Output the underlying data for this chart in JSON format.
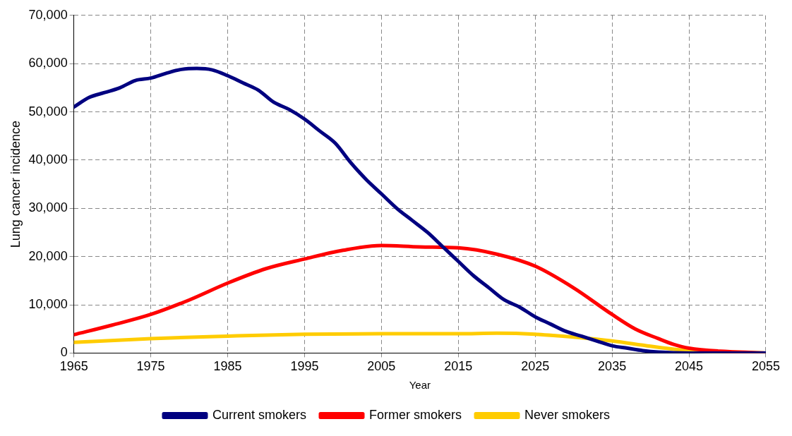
{
  "chart_data": {
    "type": "line",
    "xlabel": "Year",
    "ylabel": "Lung cancer incidence",
    "xlim": [
      1965,
      2055
    ],
    "xticks": [
      1965,
      1975,
      1985,
      1995,
      2005,
      2015,
      2025,
      2035,
      2045,
      2055
    ],
    "ylim": [
      0,
      70000
    ],
    "yticks": [
      0,
      {
        "value": 10000,
        "label": "10,000"
      },
      {
        "value": 20000,
        "label": "20,000"
      },
      {
        "value": 30000,
        "label": "30,000"
      },
      {
        "value": 40000,
        "label": "40,000"
      },
      {
        "value": 50000,
        "label": "50,000"
      },
      {
        "value": 60000,
        "label": "60,000"
      },
      {
        "value": 70000,
        "label": "70,000"
      }
    ],
    "grid": true,
    "legend": "bottom",
    "marker": "none",
    "line_style": "solid",
    "series": [
      {
        "name": "Current smokers",
        "color": "#000080",
        "x": [
          1965,
          1967,
          1969,
          1971,
          1973,
          1975,
          1977,
          1979,
          1981,
          1983,
          1985,
          1987,
          1989,
          1991,
          1993,
          1995,
          1997,
          1999,
          2001,
          2003,
          2005,
          2007,
          2009,
          2011,
          2013,
          2015,
          2017,
          2019,
          2021,
          2023,
          2025,
          2027,
          2029,
          2031,
          2033,
          2035,
          2037,
          2039,
          2041,
          2045,
          2050,
          2055
        ],
        "values": [
          51000,
          53000,
          54000,
          55000,
          56500,
          57000,
          58000,
          58800,
          59000,
          58700,
          57500,
          56000,
          54500,
          52000,
          50500,
          48500,
          46000,
          43500,
          39500,
          36000,
          33000,
          30000,
          27500,
          25000,
          22000,
          19000,
          16000,
          13500,
          11000,
          9500,
          7500,
          6000,
          4500,
          3500,
          2500,
          1500,
          1000,
          500,
          200,
          0,
          0,
          0
        ]
      },
      {
        "name": "Former smokers",
        "color": "#ff0000",
        "x": [
          1965,
          1970,
          1975,
          1980,
          1985,
          1990,
          1995,
          2000,
          2005,
          2010,
          2015,
          2020,
          2025,
          2030,
          2035,
          2038,
          2041,
          2043,
          2045,
          2050,
          2055
        ],
        "values": [
          3800,
          5800,
          8000,
          11000,
          14500,
          17500,
          19500,
          21300,
          22300,
          22000,
          21800,
          20500,
          18000,
          13500,
          8000,
          5000,
          3000,
          1800,
          1000,
          300,
          0
        ]
      },
      {
        "name": "Never smokers",
        "color": "#ffcc00",
        "x": [
          1965,
          1975,
          1985,
          1995,
          2005,
          2015,
          2020,
          2025,
          2030,
          2035,
          2040,
          2045,
          2050,
          2055
        ],
        "values": [
          2200,
          3000,
          3500,
          3900,
          4000,
          4000,
          4100,
          3900,
          3300,
          2500,
          1400,
          500,
          200,
          0
        ]
      }
    ]
  }
}
